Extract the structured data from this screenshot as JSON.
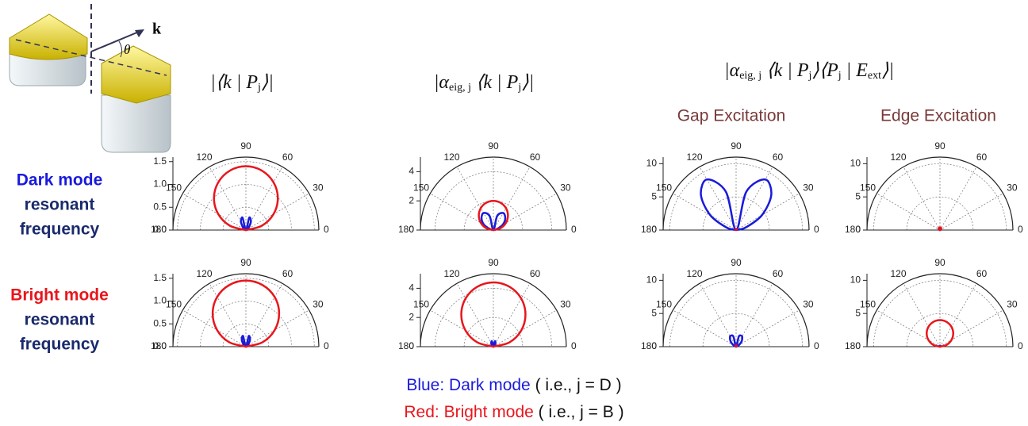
{
  "figure": {
    "diagram": {
      "k": "k",
      "theta": "θ"
    },
    "formulas": [
      [
        "|⟨k | P",
        "j",
        "⟩|"
      ],
      [
        "|α",
        "eig, j",
        " ⟨k | P",
        "j",
        "⟩|"
      ],
      [
        "|α",
        "eig, j",
        " ⟨k | P",
        "j",
        "⟩⟨P",
        "j",
        " | E",
        "ext",
        "⟩|"
      ]
    ],
    "excitations": [
      "Gap Excitation",
      "Edge Excitation"
    ],
    "rows": [
      [
        "Dark mode",
        "resonant",
        "frequency"
      ],
      [
        "Bright mode",
        "resonant",
        "frequency"
      ]
    ],
    "legend": [
      [
        "Blue: Dark mode",
        " ( i.e., j = D )"
      ],
      [
        "Red: Bright mode",
        " ( i.e., j = B )"
      ]
    ]
  },
  "chart_data": [
    {
      "type": "polar",
      "xlim": [
        0,
        180
      ],
      "xticks": [
        0,
        30,
        60,
        90,
        120,
        150,
        180
      ],
      "ylim": [
        0,
        1.6
      ],
      "yticks": [
        {
          "value": 0,
          "label": "0.0"
        },
        {
          "value": 0.5,
          "label": "0.5"
        },
        {
          "value": 1,
          "label": "1.0"
        },
        {
          "value": 1.5,
          "label": "1.5"
        }
      ],
      "x": [
        0,
        15,
        30,
        45,
        60,
        75,
        90,
        105,
        120,
        135,
        150,
        165,
        180
      ],
      "series": [
        {
          "color": "#1a1adc",
          "values": [
            0,
            0,
            0.03,
            0.1,
            0.22,
            0.28,
            0,
            0.28,
            0.22,
            0.1,
            0.03,
            0,
            0
          ]
        },
        {
          "color": "#e8161c",
          "values": [
            0,
            0.36,
            0.7,
            0.99,
            1.21,
            1.35,
            1.4,
            1.35,
            1.21,
            0.99,
            0.7,
            0.36,
            0
          ]
        }
      ]
    },
    {
      "type": "polar",
      "xlim": [
        0,
        180
      ],
      "xticks": [
        0,
        30,
        60,
        90,
        120,
        150,
        180
      ],
      "ylim": [
        0,
        5
      ],
      "yticks": [
        0,
        2,
        4
      ],
      "x": [
        0,
        15,
        30,
        45,
        60,
        75,
        90,
        105,
        120,
        135,
        150,
        165,
        180
      ],
      "series": [
        {
          "color": "#1a1adc",
          "values": [
            0,
            0.25,
            0.75,
            1.15,
            1.35,
            1.0,
            0,
            1.0,
            1.35,
            1.15,
            0.75,
            0.25,
            0
          ]
        },
        {
          "color": "#e8161c",
          "values": [
            0,
            0.52,
            1.0,
            1.41,
            1.73,
            1.93,
            2.0,
            1.93,
            1.73,
            1.41,
            1.0,
            0.52,
            0
          ]
        }
      ]
    },
    {
      "type": "polar",
      "xlim": [
        0,
        180
      ],
      "xticks": [
        0,
        30,
        60,
        90,
        120,
        150,
        180
      ],
      "ylim": [
        0,
        11
      ],
      "yticks": [
        0,
        5,
        10
      ],
      "x": [
        0,
        15,
        30,
        45,
        60,
        75,
        90,
        105,
        120,
        135,
        150,
        165,
        180
      ],
      "series": [
        {
          "color": "#1a1adc",
          "values": [
            0,
            1.5,
            4.5,
            7.5,
            8.8,
            6,
            0,
            6,
            8.8,
            7.5,
            4.5,
            1.5,
            0
          ]
        },
        {
          "color": "#e8161c",
          "values": [
            0,
            0.05,
            0.1,
            0.14,
            0.17,
            0.19,
            0.2,
            0.19,
            0.17,
            0.14,
            0.1,
            0.05,
            0
          ]
        }
      ]
    },
    {
      "type": "polar",
      "xlim": [
        0,
        180
      ],
      "xticks": [
        0,
        30,
        60,
        90,
        120,
        150,
        180
      ],
      "ylim": [
        0,
        11
      ],
      "yticks": [
        0,
        5,
        10
      ],
      "x": [
        0,
        15,
        30,
        45,
        60,
        75,
        90,
        105,
        120,
        135,
        150,
        165,
        180
      ],
      "series": [
        {
          "color": "#1a1adc",
          "values": [
            0,
            0.05,
            0.15,
            0.25,
            0.28,
            0.2,
            0,
            0.2,
            0.28,
            0.25,
            0.15,
            0.05,
            0
          ]
        },
        {
          "color": "#e8161c",
          "values": [
            0,
            0.1,
            0.2,
            0.28,
            0.35,
            0.39,
            0.4,
            0.39,
            0.35,
            0.28,
            0.2,
            0.1,
            0
          ]
        }
      ]
    },
    {
      "type": "polar",
      "xlim": [
        0,
        180
      ],
      "xticks": [
        0,
        30,
        60,
        90,
        120,
        150,
        180
      ],
      "ylim": [
        0,
        1.6
      ],
      "yticks": [
        {
          "value": 0,
          "label": "0.0"
        },
        {
          "value": 0.5,
          "label": "0.5"
        },
        {
          "value": 1,
          "label": "1.0"
        },
        {
          "value": 1.5,
          "label": "1.5"
        }
      ],
      "x": [
        0,
        15,
        30,
        45,
        60,
        75,
        90,
        105,
        120,
        135,
        150,
        165,
        180
      ],
      "series": [
        {
          "color": "#1a1adc",
          "values": [
            0,
            0,
            0.02,
            0.08,
            0.18,
            0.24,
            0,
            0.24,
            0.18,
            0.08,
            0.02,
            0,
            0
          ]
        },
        {
          "color": "#e8161c",
          "values": [
            0,
            0.38,
            0.73,
            1.03,
            1.26,
            1.4,
            1.45,
            1.4,
            1.26,
            1.03,
            0.73,
            0.38,
            0
          ]
        }
      ]
    },
    {
      "type": "polar",
      "xlim": [
        0,
        180
      ],
      "xticks": [
        0,
        30,
        60,
        90,
        120,
        150,
        180
      ],
      "ylim": [
        0,
        5
      ],
      "yticks": [
        0,
        2,
        4
      ],
      "x": [
        0,
        15,
        30,
        45,
        60,
        75,
        90,
        105,
        120,
        135,
        150,
        165,
        180
      ],
      "series": [
        {
          "color": "#1a1adc",
          "values": [
            0,
            0,
            0.05,
            0.15,
            0.3,
            0.38,
            0,
            0.38,
            0.3,
            0.15,
            0.05,
            0,
            0
          ]
        },
        {
          "color": "#e8161c",
          "values": [
            0,
            1.14,
            2.2,
            3.11,
            3.81,
            4.25,
            4.4,
            4.25,
            3.81,
            3.11,
            2.2,
            1.14,
            0
          ]
        }
      ]
    },
    {
      "type": "polar",
      "xlim": [
        0,
        180
      ],
      "xticks": [
        0,
        30,
        60,
        90,
        120,
        150,
        180
      ],
      "ylim": [
        0,
        11
      ],
      "yticks": [
        0,
        5,
        10
      ],
      "x": [
        0,
        15,
        30,
        45,
        60,
        75,
        90,
        105,
        120,
        135,
        150,
        165,
        180
      ],
      "series": [
        {
          "color": "#1a1adc",
          "values": [
            0,
            0.1,
            0.5,
            1.2,
            1.8,
            1.6,
            0,
            1.6,
            1.8,
            1.2,
            0.5,
            0.1,
            0
          ]
        },
        {
          "color": "#e8161c",
          "values": [
            0,
            0.05,
            0.1,
            0.14,
            0.17,
            0.19,
            0.2,
            0.19,
            0.17,
            0.14,
            0.1,
            0.05,
            0
          ]
        }
      ]
    },
    {
      "type": "polar",
      "xlim": [
        0,
        180
      ],
      "xticks": [
        0,
        30,
        60,
        90,
        120,
        150,
        180
      ],
      "ylim": [
        0,
        11
      ],
      "yticks": [
        0,
        5,
        10
      ],
      "x": [
        0,
        15,
        30,
        45,
        60,
        75,
        90,
        105,
        120,
        135,
        150,
        165,
        180
      ],
      "series": [
        {
          "color": "#1a1adc",
          "values": [
            0,
            0,
            0.05,
            0.1,
            0.15,
            0.15,
            0,
            0.15,
            0.15,
            0.1,
            0.05,
            0,
            0
          ]
        },
        {
          "color": "#e8161c",
          "values": [
            0,
            1.04,
            2,
            2.83,
            3.46,
            3.86,
            4,
            3.86,
            3.46,
            2.83,
            2,
            1.04,
            0
          ]
        }
      ]
    }
  ]
}
